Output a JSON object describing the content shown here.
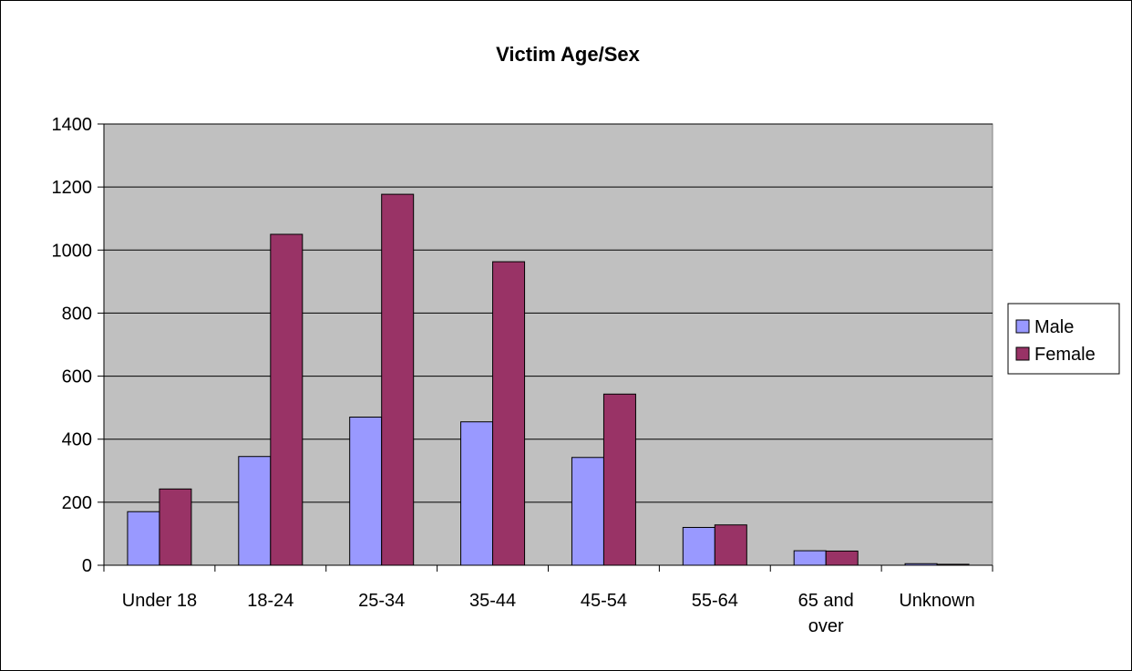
{
  "chart_data": {
    "type": "bar",
    "title": "Victim Age/Sex",
    "xlabel": "",
    "ylabel": "",
    "categories": [
      "Under 18",
      "18-24",
      "25-34",
      "35-44",
      "45-54",
      "55-64",
      "65 and over",
      "Unknown"
    ],
    "category_lines": [
      [
        "Under 18"
      ],
      [
        "18-24"
      ],
      [
        "25-34"
      ],
      [
        "35-44"
      ],
      [
        "45-54"
      ],
      [
        "55-64"
      ],
      [
        "65 and",
        "over"
      ],
      [
        "Unknown"
      ]
    ],
    "series": [
      {
        "name": "Male",
        "color": "#9999ff",
        "values": [
          170,
          345,
          470,
          455,
          342,
          120,
          46,
          5
        ]
      },
      {
        "name": "Female",
        "color": "#993366",
        "values": [
          242,
          1050,
          1177,
          963,
          543,
          128,
          45,
          3
        ]
      }
    ],
    "ylim": [
      0,
      1400
    ],
    "yticks": [
      0,
      200,
      400,
      600,
      800,
      1000,
      1200,
      1400
    ],
    "grid": true,
    "plot_background": "#c0c0c0",
    "legend_position": "right"
  }
}
